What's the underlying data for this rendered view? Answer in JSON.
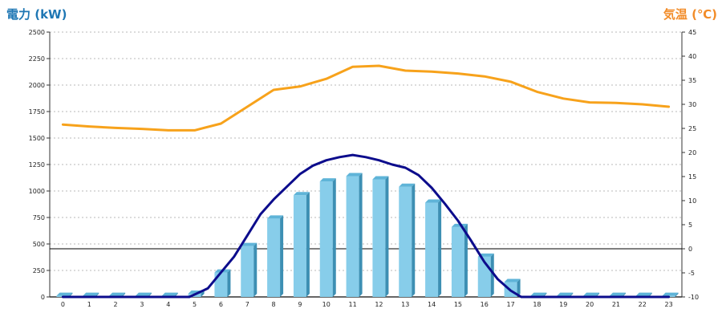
{
  "chart_data": {
    "type": "bar",
    "y_left_label": "電力 (kW)",
    "y_right_label": "気温 (℃)",
    "ylim_left": [
      0,
      2500
    ],
    "yticks_left": [
      0,
      250,
      500,
      750,
      1000,
      1250,
      1500,
      1750,
      2000,
      2250,
      2500
    ],
    "ylim_right": [
      -10,
      45
    ],
    "yticks_right": [
      -10,
      -5,
      0,
      5,
      10,
      15,
      20,
      25,
      30,
      35,
      40,
      45
    ],
    "grid": true,
    "categories": [
      "0",
      "1",
      "2",
      "3",
      "4",
      "5",
      "6",
      "7",
      "8",
      "9",
      "10",
      "11",
      "12",
      "13",
      "14",
      "15",
      "16",
      "17",
      "18",
      "19",
      "20",
      "21",
      "22",
      "23"
    ],
    "series": [
      {
        "kind": "bar",
        "axis": "left",
        "color": "#87cdea",
        "values": [
          10,
          10,
          10,
          10,
          10,
          30,
          230,
          480,
          740,
          960,
          1090,
          1140,
          1110,
          1040,
          890,
          660,
          380,
          140,
          10,
          10,
          10,
          10,
          10,
          10
        ]
      },
      {
        "kind": "line",
        "axis": "left",
        "color": "#0c0c8c",
        "x": [
          0,
          4.8,
          5.5,
          6,
          6.5,
          7,
          7.5,
          8,
          8.5,
          9,
          9.5,
          10,
          10.5,
          11,
          11.5,
          12,
          12.5,
          13,
          13.5,
          14,
          14.5,
          15,
          15.5,
          16,
          16.5,
          17,
          17.4,
          18,
          23
        ],
        "values": [
          0,
          0,
          80,
          230,
          380,
          580,
          780,
          920,
          1040,
          1160,
          1240,
          1290,
          1320,
          1340,
          1320,
          1290,
          1250,
          1220,
          1150,
          1030,
          880,
          720,
          530,
          330,
          170,
          60,
          0,
          0,
          0
        ]
      },
      {
        "kind": "line",
        "axis": "right",
        "color": "#f7a21b",
        "x": [
          0,
          1,
          2,
          3,
          4,
          5,
          6,
          7,
          8,
          9,
          10,
          11,
          12,
          13,
          14,
          15,
          16,
          17,
          18,
          19,
          20,
          21,
          22,
          23
        ],
        "values": [
          25.8,
          25.4,
          25.1,
          24.9,
          24.6,
          24.6,
          26.0,
          29.5,
          33.0,
          33.7,
          35.3,
          37.8,
          38.0,
          37.0,
          36.8,
          36.4,
          35.8,
          34.7,
          32.6,
          31.2,
          30.4,
          30.3,
          30.0,
          29.5
        ]
      }
    ],
    "zero_line_right": 0
  }
}
